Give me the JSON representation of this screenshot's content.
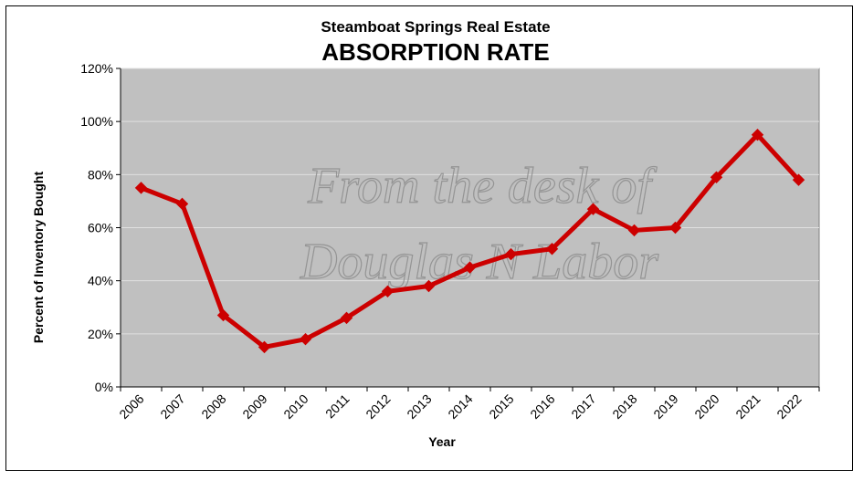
{
  "colors": {
    "plot_bg": "#c0c0c0",
    "line": "#cc0000",
    "grid": "#e0e0e0"
  },
  "watermark": {
    "line1": "From the desk of",
    "line2": "Douglas N Labor"
  },
  "chart_data": {
    "type": "line",
    "subtitle": "Steamboat Springs Real Estate",
    "title": "ABSORPTION RATE",
    "xlabel": "Year",
    "ylabel": "Percent of Inventory Bought",
    "ylim": [
      0,
      120
    ],
    "ytick_values": [
      0,
      20,
      40,
      60,
      80,
      100,
      120
    ],
    "ytick_labels": [
      "0%",
      "20%",
      "40%",
      "60%",
      "80%",
      "100%",
      "120%"
    ],
    "grid": true,
    "categories": [
      "2006",
      "2007",
      "2008",
      "2009",
      "2010",
      "2011",
      "2012",
      "2013",
      "2014",
      "2015",
      "2016",
      "2017",
      "2018",
      "2019",
      "2020",
      "2021",
      "2022"
    ],
    "series": [
      {
        "name": "Absorption Rate",
        "values": [
          75,
          69,
          27,
          15,
          18,
          26,
          36,
          38,
          45,
          50,
          52,
          67,
          59,
          60,
          79,
          95,
          78
        ]
      }
    ]
  }
}
